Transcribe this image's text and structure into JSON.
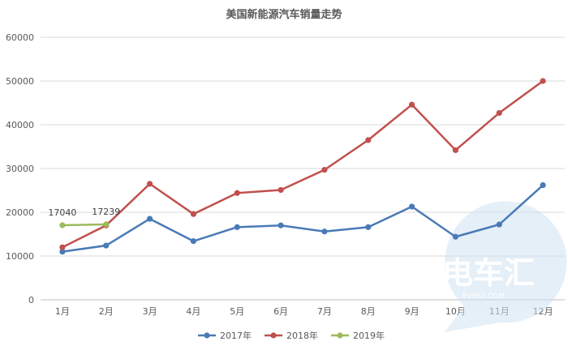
{
  "chart_data": {
    "type": "line",
    "title": "美国新能源汽车销量走势",
    "xlabel": "",
    "ylabel": "",
    "categories": [
      "1月",
      "2月",
      "3月",
      "4月",
      "5月",
      "6月",
      "7月",
      "8月",
      "9月",
      "10月",
      "11月",
      "12月"
    ],
    "ylim": [
      0,
      60000
    ],
    "yticks": [
      0,
      10000,
      20000,
      30000,
      40000,
      50000,
      60000
    ],
    "grid": true,
    "legend_position": "bottom",
    "series": [
      {
        "name": "2017年",
        "color": "#4a7ab6",
        "values": [
          11000,
          12400,
          18500,
          13400,
          16600,
          17000,
          15600,
          16600,
          21300,
          14400,
          17200,
          26200
        ]
      },
      {
        "name": "2018年",
        "color": "#c0504d",
        "values": [
          12000,
          17000,
          26500,
          19600,
          24400,
          25100,
          29700,
          36500,
          44600,
          34200,
          42700,
          50000
        ]
      },
      {
        "name": "2019年",
        "color": "#9bbb59",
        "values": [
          17040,
          17239,
          null,
          null,
          null,
          null,
          null,
          null,
          null,
          null,
          null,
          null
        ]
      }
    ],
    "data_labels": [
      {
        "series": "2019年",
        "index": 0,
        "text": "17040"
      },
      {
        "series": "2019年",
        "index": 1,
        "text": "17239"
      }
    ]
  },
  "watermark": {
    "brand": "电车汇",
    "url": "EVHUI.COM"
  }
}
